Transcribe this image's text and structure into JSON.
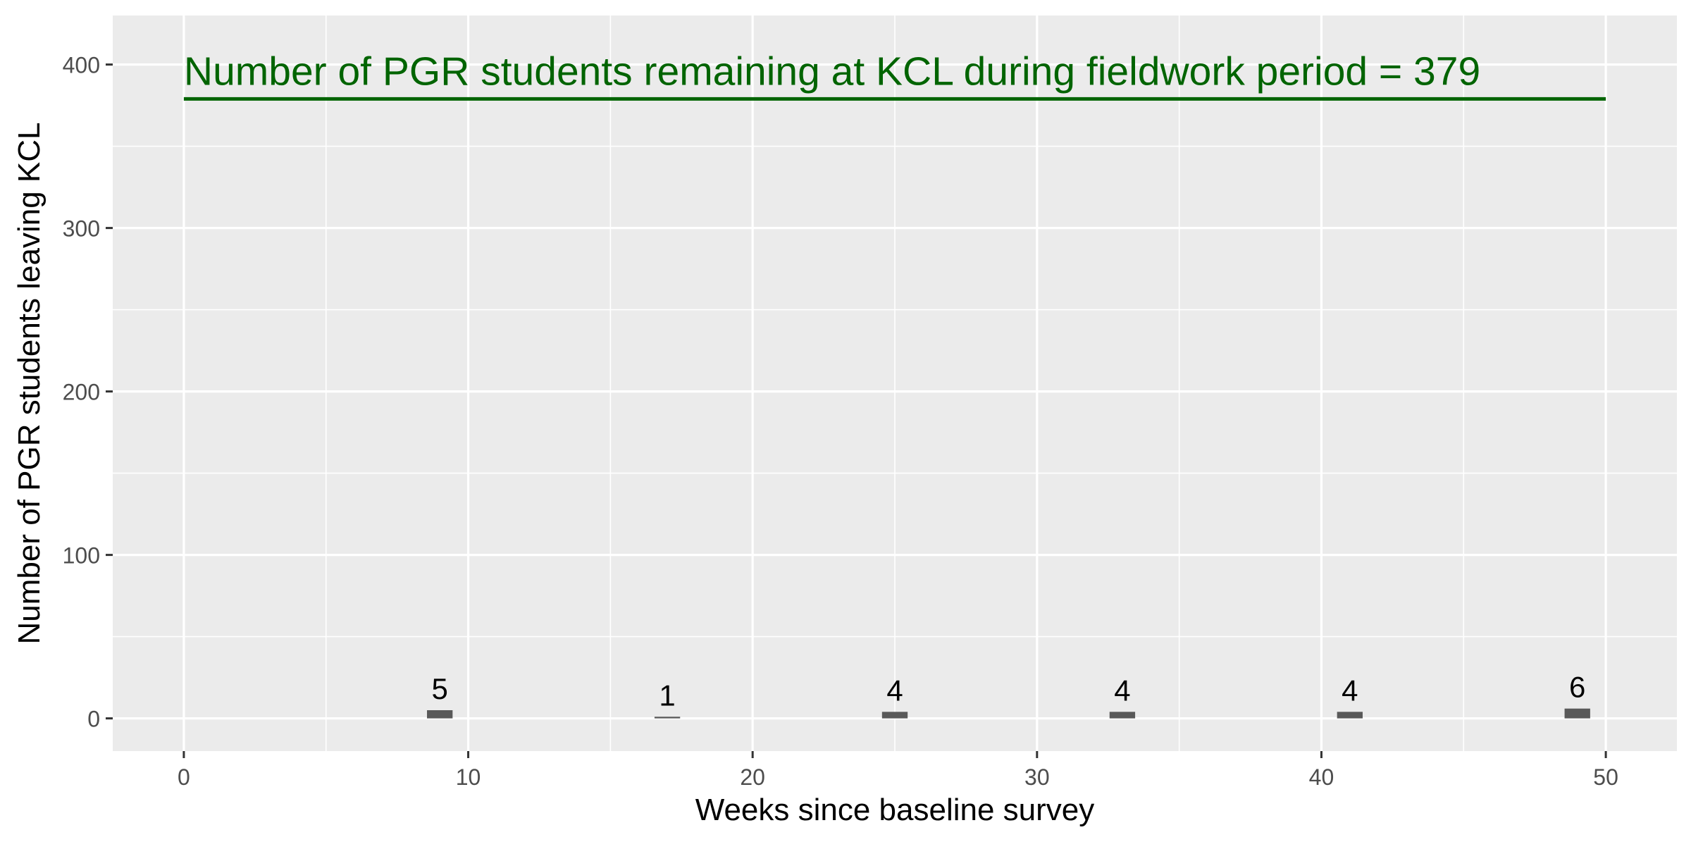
{
  "chart_data": {
    "type": "bar",
    "x": [
      9,
      17,
      25,
      33,
      41,
      49
    ],
    "values": [
      5,
      1,
      4,
      4,
      4,
      6
    ],
    "data_labels": [
      "5",
      "1",
      "4",
      "4",
      "4",
      "6"
    ],
    "xlabel": "Weeks since baseline survey",
    "ylabel": "Number of PGR students leaving KCL",
    "xlim": [
      -2.5,
      52.5
    ],
    "ylim": [
      -20,
      430
    ],
    "x_ticks": [
      0,
      10,
      20,
      30,
      40,
      50
    ],
    "x_tick_labels": [
      "0",
      "10",
      "20",
      "30",
      "40",
      "50"
    ],
    "y_ticks": [
      0,
      100,
      200,
      300,
      400
    ],
    "y_tick_labels": [
      "0",
      "100",
      "200",
      "300",
      "400"
    ],
    "reference_line": {
      "y": 379,
      "x_start": 0,
      "x_end": 50,
      "label": "Number of PGR students remaining at KCL during fieldwork period = 379",
      "color": "#006400"
    },
    "grid": true,
    "colors": {
      "panel_background": "#ebebeb",
      "grid_line": "#ffffff",
      "bar": "#595959",
      "axis_text": "#4d4d4d",
      "axis_title": "#000000",
      "data_label": "#000000"
    }
  }
}
